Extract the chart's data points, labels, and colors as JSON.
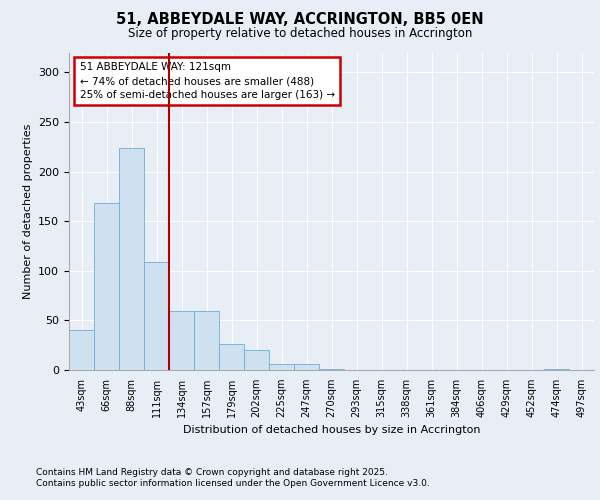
{
  "title": "51, ABBEYDALE WAY, ACCRINGTON, BB5 0EN",
  "subtitle": "Size of property relative to detached houses in Accrington",
  "xlabel": "Distribution of detached houses by size in Accrington",
  "ylabel": "Number of detached properties",
  "categories": [
    "43sqm",
    "66sqm",
    "88sqm",
    "111sqm",
    "134sqm",
    "157sqm",
    "179sqm",
    "202sqm",
    "225sqm",
    "247sqm",
    "270sqm",
    "293sqm",
    "315sqm",
    "338sqm",
    "361sqm",
    "384sqm",
    "406sqm",
    "429sqm",
    "452sqm",
    "474sqm",
    "497sqm"
  ],
  "values": [
    40,
    168,
    224,
    109,
    59,
    59,
    26,
    20,
    6,
    6,
    1,
    0,
    0,
    0,
    0,
    0,
    0,
    0,
    0,
    1,
    0
  ],
  "bar_color": "#cfe0f0",
  "bar_edge_color": "#6baed6",
  "background_color": "#e8eef5",
  "plot_bg_color": "#e8eef5",
  "red_line_x": 3.5,
  "annotation_text": "51 ABBEYDALE WAY: 121sqm\n← 74% of detached houses are smaller (488)\n25% of semi-detached houses are larger (163) →",
  "annotation_box_color": "#ffffff",
  "annotation_box_edge": "#cc0000",
  "red_line_color": "#aa0000",
  "ylim": [
    0,
    320
  ],
  "yticks": [
    0,
    50,
    100,
    150,
    200,
    250,
    300
  ],
  "footer_line1": "Contains HM Land Registry data © Crown copyright and database right 2025.",
  "footer_line2": "Contains public sector information licensed under the Open Government Licence v3.0."
}
